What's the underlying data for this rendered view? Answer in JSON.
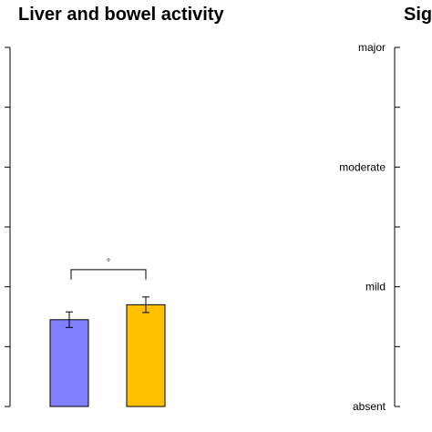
{
  "chart_data": [
    {
      "type": "bar",
      "title": "Liver and bowel activity",
      "categories": [
        "",
        ""
      ],
      "values": [
        1.45,
        1.7
      ],
      "errors": [
        0.13,
        0.13
      ],
      "colors": [
        "#8080ff",
        "#ffc000"
      ],
      "ylim": [
        0,
        6
      ],
      "yticks": [
        0,
        1,
        2,
        3,
        4,
        5,
        6
      ],
      "ytick_labels": [],
      "significance": {
        "between": [
          0,
          1
        ],
        "label": "°",
        "level": 2.5
      }
    },
    {
      "type": "bar",
      "title": "Sig",
      "categories": [],
      "values": [],
      "ylim": [
        0,
        3
      ],
      "yticks": [
        0,
        0.5,
        1,
        1.5,
        2,
        2.5,
        3
      ],
      "ytick_labels": [
        "absent",
        "",
        "mild",
        "",
        "moderate",
        "",
        "major"
      ]
    }
  ]
}
